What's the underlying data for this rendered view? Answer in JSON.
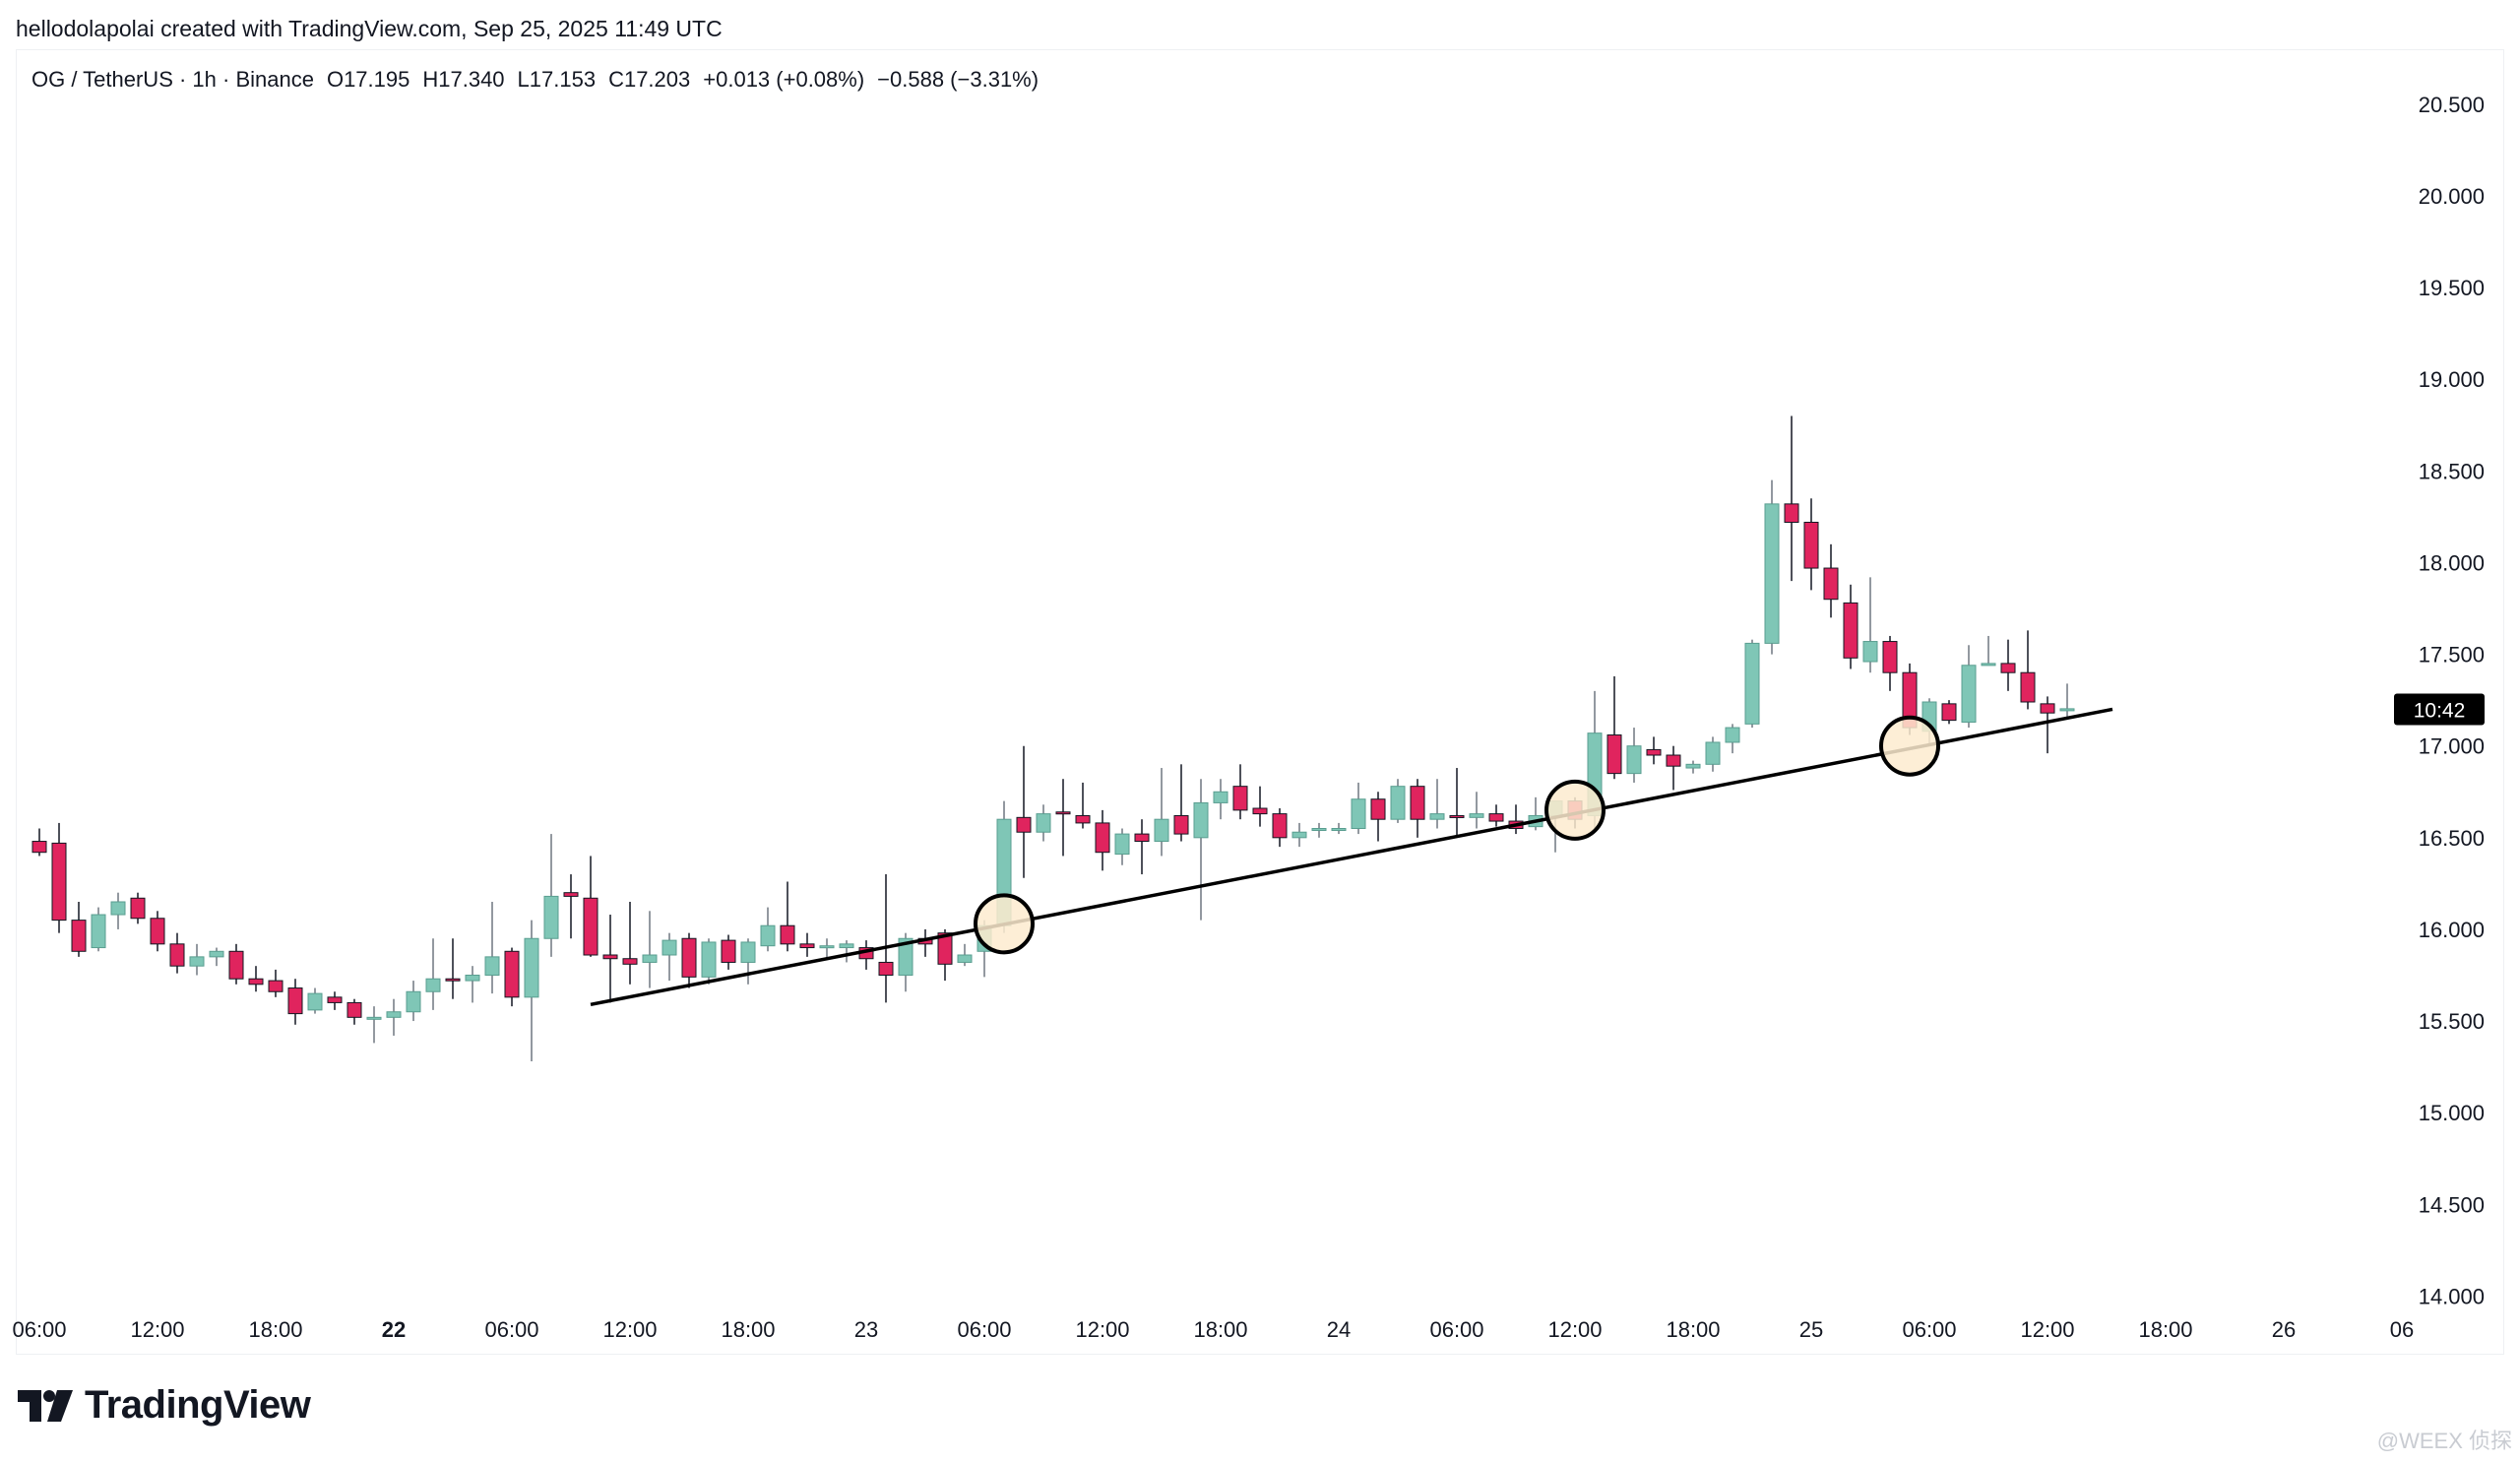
{
  "header": {
    "credit": "hellodolapolai created with TradingView.com, Sep 25, 2025 11:49 UTC"
  },
  "symbol": {
    "name": "OG / TetherUS · 1h · Binance",
    "open": "O17.195",
    "high": "H17.340",
    "low": "L17.153",
    "close": "C17.203",
    "change": "+0.013 (+0.08%)",
    "change2": "−0.588 (−3.31%)"
  },
  "countdown": "10:42",
  "footer": {
    "brand": "TradingView",
    "watermark": "@WEEX 侦探"
  },
  "colors": {
    "up": "#7fc6b6",
    "down": "#e0245e",
    "line": "#000000",
    "circle_fill": "#fdebcf",
    "badge": "#000000"
  },
  "chart_data": {
    "type": "candlestick",
    "interval": "1h",
    "y_axis": {
      "range": [
        13.68,
        20.8
      ],
      "ticks": [
        "20.500",
        "20.000",
        "19.500",
        "19.000",
        "18.500",
        "18.000",
        "17.500",
        "17.000",
        "16.500",
        "16.000",
        "15.500",
        "15.000",
        "14.500",
        "14.000"
      ]
    },
    "x_axis": {
      "tick_labels": [
        {
          "label": "06:00",
          "hour": 0,
          "bold": false
        },
        {
          "label": "12:00",
          "hour": 6,
          "bold": false
        },
        {
          "label": "18:00",
          "hour": 12,
          "bold": false
        },
        {
          "label": "22",
          "hour": 18,
          "bold": true
        },
        {
          "label": "06:00",
          "hour": 24,
          "bold": false
        },
        {
          "label": "12:00",
          "hour": 30,
          "bold": false
        },
        {
          "label": "18:00",
          "hour": 36,
          "bold": false
        },
        {
          "label": "23",
          "hour": 42,
          "bold": false
        },
        {
          "label": "06:00",
          "hour": 48,
          "bold": false
        },
        {
          "label": "12:00",
          "hour": 54,
          "bold": false
        },
        {
          "label": "18:00",
          "hour": 60,
          "bold": false
        },
        {
          "label": "24",
          "hour": 66,
          "bold": false
        },
        {
          "label": "06:00",
          "hour": 72,
          "bold": false
        },
        {
          "label": "12:00",
          "hour": 78,
          "bold": false
        },
        {
          "label": "18:00",
          "hour": 84,
          "bold": false
        },
        {
          "label": "25",
          "hour": 90,
          "bold": false
        },
        {
          "label": "06:00",
          "hour": 96,
          "bold": false
        },
        {
          "label": "12:00",
          "hour": 102,
          "bold": false
        },
        {
          "label": "18:00",
          "hour": 108,
          "bold": false
        },
        {
          "label": "26",
          "hour": 114,
          "bold": false
        },
        {
          "label": "06",
          "hour": 120,
          "bold": false
        }
      ]
    },
    "candles": [
      {
        "o": 16.48,
        "h": 16.55,
        "l": 16.4,
        "c": 16.42
      },
      {
        "o": 16.47,
        "h": 16.58,
        "l": 15.98,
        "c": 16.05
      },
      {
        "o": 16.05,
        "h": 16.15,
        "l": 15.85,
        "c": 15.88
      },
      {
        "o": 15.9,
        "h": 16.12,
        "l": 15.88,
        "c": 16.08
      },
      {
        "o": 16.08,
        "h": 16.2,
        "l": 16.0,
        "c": 16.15
      },
      {
        "o": 16.17,
        "h": 16.2,
        "l": 16.03,
        "c": 16.06
      },
      {
        "o": 16.06,
        "h": 16.1,
        "l": 15.88,
        "c": 15.92
      },
      {
        "o": 15.92,
        "h": 15.98,
        "l": 15.76,
        "c": 15.8
      },
      {
        "o": 15.8,
        "h": 15.92,
        "l": 15.75,
        "c": 15.85
      },
      {
        "o": 15.85,
        "h": 15.9,
        "l": 15.8,
        "c": 15.88
      },
      {
        "o": 15.88,
        "h": 15.92,
        "l": 15.7,
        "c": 15.73
      },
      {
        "o": 15.73,
        "h": 15.8,
        "l": 15.66,
        "c": 15.7
      },
      {
        "o": 15.72,
        "h": 15.78,
        "l": 15.63,
        "c": 15.66
      },
      {
        "o": 15.68,
        "h": 15.73,
        "l": 15.48,
        "c": 15.54
      },
      {
        "o": 15.56,
        "h": 15.68,
        "l": 15.54,
        "c": 15.65
      },
      {
        "o": 15.63,
        "h": 15.66,
        "l": 15.56,
        "c": 15.6
      },
      {
        "o": 15.6,
        "h": 15.62,
        "l": 15.48,
        "c": 15.52
      },
      {
        "o": 15.52,
        "h": 15.58,
        "l": 15.38,
        "c": 15.52
      },
      {
        "o": 15.52,
        "h": 15.62,
        "l": 15.42,
        "c": 15.55
      },
      {
        "o": 15.55,
        "h": 15.72,
        "l": 15.5,
        "c": 15.66
      },
      {
        "o": 15.66,
        "h": 15.95,
        "l": 15.56,
        "c": 15.73
      },
      {
        "o": 15.73,
        "h": 15.95,
        "l": 15.62,
        "c": 15.72
      },
      {
        "o": 15.72,
        "h": 15.8,
        "l": 15.6,
        "c": 15.75
      },
      {
        "o": 15.75,
        "h": 16.15,
        "l": 15.65,
        "c": 15.85
      },
      {
        "o": 15.88,
        "h": 15.9,
        "l": 15.58,
        "c": 15.63
      },
      {
        "o": 15.63,
        "h": 16.05,
        "l": 15.28,
        "c": 15.95
      },
      {
        "o": 15.95,
        "h": 16.52,
        "l": 15.85,
        "c": 16.18
      },
      {
        "o": 16.2,
        "h": 16.3,
        "l": 15.95,
        "c": 16.18
      },
      {
        "o": 16.17,
        "h": 16.4,
        "l": 15.85,
        "c": 15.86
      },
      {
        "o": 15.86,
        "h": 16.08,
        "l": 15.6,
        "c": 15.84
      },
      {
        "o": 15.84,
        "h": 16.15,
        "l": 15.7,
        "c": 15.81
      },
      {
        "o": 15.82,
        "h": 16.1,
        "l": 15.68,
        "c": 15.86
      },
      {
        "o": 15.86,
        "h": 15.98,
        "l": 15.72,
        "c": 15.94
      },
      {
        "o": 15.95,
        "h": 15.98,
        "l": 15.68,
        "c": 15.74
      },
      {
        "o": 15.74,
        "h": 15.95,
        "l": 15.7,
        "c": 15.93
      },
      {
        "o": 15.94,
        "h": 15.97,
        "l": 15.78,
        "c": 15.82
      },
      {
        "o": 15.82,
        "h": 15.95,
        "l": 15.7,
        "c": 15.93
      },
      {
        "o": 15.91,
        "h": 16.12,
        "l": 15.88,
        "c": 16.02
      },
      {
        "o": 16.02,
        "h": 16.26,
        "l": 15.88,
        "c": 15.92
      },
      {
        "o": 15.92,
        "h": 15.98,
        "l": 15.85,
        "c": 15.9
      },
      {
        "o": 15.9,
        "h": 15.95,
        "l": 15.84,
        "c": 15.91
      },
      {
        "o": 15.9,
        "h": 15.94,
        "l": 15.82,
        "c": 15.92
      },
      {
        "o": 15.9,
        "h": 15.94,
        "l": 15.78,
        "c": 15.84
      },
      {
        "o": 15.82,
        "h": 16.3,
        "l": 15.6,
        "c": 15.75
      },
      {
        "o": 15.75,
        "h": 15.98,
        "l": 15.66,
        "c": 15.95
      },
      {
        "o": 15.95,
        "h": 16.0,
        "l": 15.85,
        "c": 15.92
      },
      {
        "o": 15.98,
        "h": 16.0,
        "l": 15.72,
        "c": 15.81
      },
      {
        "o": 15.82,
        "h": 15.92,
        "l": 15.8,
        "c": 15.86
      },
      {
        "o": 15.88,
        "h": 16.05,
        "l": 15.74,
        "c": 16.02
      },
      {
        "o": 16.02,
        "h": 16.7,
        "l": 15.98,
        "c": 16.6
      },
      {
        "o": 16.61,
        "h": 17.0,
        "l": 16.28,
        "c": 16.53
      },
      {
        "o": 16.53,
        "h": 16.68,
        "l": 16.48,
        "c": 16.63
      },
      {
        "o": 16.64,
        "h": 16.82,
        "l": 16.4,
        "c": 16.63
      },
      {
        "o": 16.62,
        "h": 16.8,
        "l": 16.55,
        "c": 16.58
      },
      {
        "o": 16.58,
        "h": 16.65,
        "l": 16.32,
        "c": 16.42
      },
      {
        "o": 16.41,
        "h": 16.55,
        "l": 16.35,
        "c": 16.52
      },
      {
        "o": 16.52,
        "h": 16.6,
        "l": 16.3,
        "c": 16.48
      },
      {
        "o": 16.48,
        "h": 16.88,
        "l": 16.4,
        "c": 16.6
      },
      {
        "o": 16.62,
        "h": 16.9,
        "l": 16.48,
        "c": 16.52
      },
      {
        "o": 16.5,
        "h": 16.82,
        "l": 16.05,
        "c": 16.69
      },
      {
        "o": 16.69,
        "h": 16.82,
        "l": 16.6,
        "c": 16.75
      },
      {
        "o": 16.78,
        "h": 16.9,
        "l": 16.6,
        "c": 16.65
      },
      {
        "o": 16.66,
        "h": 16.78,
        "l": 16.56,
        "c": 16.63
      },
      {
        "o": 16.63,
        "h": 16.66,
        "l": 16.45,
        "c": 16.5
      },
      {
        "o": 16.5,
        "h": 16.58,
        "l": 16.45,
        "c": 16.53
      },
      {
        "o": 16.54,
        "h": 16.58,
        "l": 16.5,
        "c": 16.55
      },
      {
        "o": 16.55,
        "h": 16.58,
        "l": 16.52,
        "c": 16.55
      },
      {
        "o": 16.55,
        "h": 16.8,
        "l": 16.52,
        "c": 16.71
      },
      {
        "o": 16.71,
        "h": 16.75,
        "l": 16.48,
        "c": 16.6
      },
      {
        "o": 16.6,
        "h": 16.82,
        "l": 16.58,
        "c": 16.78
      },
      {
        "o": 16.78,
        "h": 16.82,
        "l": 16.5,
        "c": 16.6
      },
      {
        "o": 16.6,
        "h": 16.82,
        "l": 16.55,
        "c": 16.63
      },
      {
        "o": 16.62,
        "h": 16.88,
        "l": 16.5,
        "c": 16.61
      },
      {
        "o": 16.61,
        "h": 16.75,
        "l": 16.55,
        "c": 16.63
      },
      {
        "o": 16.63,
        "h": 16.68,
        "l": 16.56,
        "c": 16.59
      },
      {
        "o": 16.59,
        "h": 16.68,
        "l": 16.52,
        "c": 16.55
      },
      {
        "o": 16.56,
        "h": 16.72,
        "l": 16.54,
        "c": 16.62
      },
      {
        "o": 16.62,
        "h": 16.68,
        "l": 16.42,
        "c": 16.7
      },
      {
        "o": 16.7,
        "h": 16.72,
        "l": 16.55,
        "c": 16.6
      },
      {
        "o": 16.62,
        "h": 17.3,
        "l": 16.55,
        "c": 17.07
      },
      {
        "o": 17.06,
        "h": 17.38,
        "l": 16.82,
        "c": 16.85
      },
      {
        "o": 16.85,
        "h": 17.1,
        "l": 16.8,
        "c": 17.0
      },
      {
        "o": 16.98,
        "h": 17.05,
        "l": 16.9,
        "c": 16.95
      },
      {
        "o": 16.95,
        "h": 17.0,
        "l": 16.76,
        "c": 16.89
      },
      {
        "o": 16.88,
        "h": 16.92,
        "l": 16.85,
        "c": 16.9
      },
      {
        "o": 16.9,
        "h": 17.05,
        "l": 16.86,
        "c": 17.02
      },
      {
        "o": 17.02,
        "h": 17.12,
        "l": 16.96,
        "c": 17.1
      },
      {
        "o": 17.12,
        "h": 17.58,
        "l": 17.1,
        "c": 17.56
      },
      {
        "o": 17.56,
        "h": 18.45,
        "l": 17.5,
        "c": 18.32
      },
      {
        "o": 18.32,
        "h": 18.8,
        "l": 17.9,
        "c": 18.22
      },
      {
        "o": 18.22,
        "h": 18.35,
        "l": 17.85,
        "c": 17.97
      },
      {
        "o": 17.97,
        "h": 18.1,
        "l": 17.7,
        "c": 17.8
      },
      {
        "o": 17.78,
        "h": 17.88,
        "l": 17.42,
        "c": 17.48
      },
      {
        "o": 17.46,
        "h": 17.92,
        "l": 17.4,
        "c": 17.57
      },
      {
        "o": 17.57,
        "h": 17.6,
        "l": 17.3,
        "c": 17.4
      },
      {
        "o": 17.4,
        "h": 17.45,
        "l": 17.06,
        "c": 17.1
      },
      {
        "o": 17.08,
        "h": 17.26,
        "l": 17.0,
        "c": 17.24
      },
      {
        "o": 17.23,
        "h": 17.25,
        "l": 17.12,
        "c": 17.14
      },
      {
        "o": 17.13,
        "h": 17.55,
        "l": 17.1,
        "c": 17.44
      },
      {
        "o": 17.44,
        "h": 17.6,
        "l": 17.44,
        "c": 17.45
      },
      {
        "o": 17.45,
        "h": 17.58,
        "l": 17.3,
        "c": 17.4
      },
      {
        "o": 17.4,
        "h": 17.63,
        "l": 17.2,
        "c": 17.24
      },
      {
        "o": 17.23,
        "h": 17.27,
        "l": 16.96,
        "c": 17.18
      },
      {
        "o": 17.195,
        "h": 17.34,
        "l": 17.153,
        "c": 17.203
      }
    ],
    "trendline": {
      "start": {
        "hour": 28,
        "price": 15.59
      },
      "end": {
        "hour": 105.3,
        "price": 17.2
      }
    },
    "highlight_circles": [
      {
        "hour": 49,
        "price": 16.03
      },
      {
        "hour": 78,
        "price": 16.65
      },
      {
        "hour": 95,
        "price": 17.0
      }
    ],
    "last_price_badge": {
      "price": 17.2
    }
  }
}
